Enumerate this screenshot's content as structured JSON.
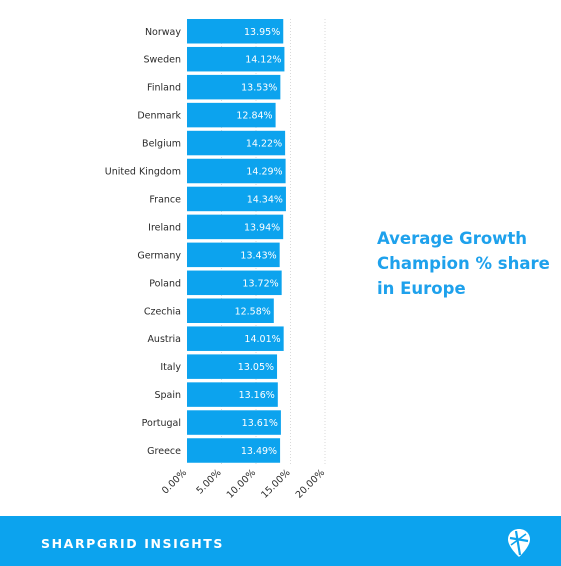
{
  "colors": {
    "bar": "#0ca3ee",
    "title": "#1ea1ec",
    "footer": "#0ca3ee"
  },
  "title": "Average Growth Champion % share in Europe",
  "footer": {
    "brand": "SHARPGRID INSIGHTS",
    "logo_icon": "map-pin-grid-icon"
  },
  "chart_data": {
    "type": "bar",
    "orientation": "horizontal",
    "categories": [
      "Norway",
      "Sweden",
      "Finland",
      "Denmark",
      "Belgium",
      "United Kingdom",
      "France",
      "Ireland",
      "Germany",
      "Poland",
      "Czechia",
      "Austria",
      "Italy",
      "Spain",
      "Portugal",
      "Greece"
    ],
    "values": [
      13.95,
      14.12,
      13.53,
      12.84,
      14.22,
      14.29,
      14.34,
      13.94,
      13.43,
      13.72,
      12.58,
      14.01,
      13.05,
      13.16,
      13.61,
      13.49
    ],
    "value_labels": [
      "13.95%",
      "14.12%",
      "13.53%",
      "12.84%",
      "14.22%",
      "14.29%",
      "14.34%",
      "13.94%",
      "13.43%",
      "13.72%",
      "12.58%",
      "14.01%",
      "13.05%",
      "13.16%",
      "13.61%",
      "13.49%"
    ],
    "ticks": [
      0,
      5,
      10,
      15,
      20
    ],
    "tick_labels": [
      "0.00%",
      "5.00%",
      "10.00%",
      "15.00%",
      "20.00%"
    ],
    "xlim": [
      0,
      20
    ],
    "title": "Average Growth Champion % share in Europe",
    "xlabel": "",
    "ylabel": "",
    "grid": true,
    "legend": "none"
  }
}
